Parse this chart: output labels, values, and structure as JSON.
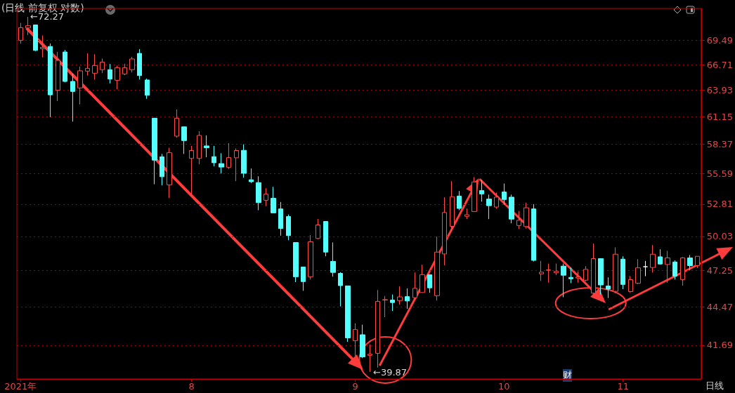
{
  "chart_data": {
    "type": "candlestick",
    "title": "(日线 前复权 对数)",
    "categories": [
      "2021年",
      null,
      null,
      null,
      null,
      null,
      null,
      null,
      null,
      null,
      null,
      null,
      null,
      null,
      null,
      null,
      null,
      null,
      null,
      null,
      null,
      null,
      null,
      "8",
      null,
      null,
      null,
      null,
      null,
      null,
      null,
      null,
      null,
      null,
      null,
      null,
      null,
      null,
      null,
      null,
      null,
      null,
      null,
      null,
      null,
      "9",
      null,
      null,
      null,
      null,
      null,
      null,
      null,
      null,
      null,
      null,
      null,
      null,
      null,
      null,
      null,
      null,
      null,
      null,
      null,
      "10",
      null,
      null,
      null,
      null,
      null,
      null,
      null,
      null,
      null,
      null,
      null,
      null,
      null,
      null,
      null,
      "11",
      null,
      null,
      null,
      null,
      null,
      null,
      null,
      null,
      null,
      null
    ],
    "ohlc": [
      [
        69.49,
        71.54,
        69.09,
        70.97
      ],
      [
        70.94,
        72.27,
        70.1,
        71.2
      ],
      [
        71.3,
        71.3,
        68.24,
        68.32
      ],
      [
        68.51,
        70.06,
        67.53,
        68.67
      ],
      [
        68.78,
        69.12,
        61.1,
        63.42
      ],
      [
        63.91,
        68.14,
        62.76,
        67.19
      ],
      [
        68.14,
        68.38,
        64.76,
        64.86
      ],
      [
        64.86,
        65.71,
        60.64,
        63.78
      ],
      [
        64.16,
        66.48,
        62.41,
        66.02
      ],
      [
        65.99,
        67.98,
        65.5,
        66.3
      ],
      [
        65.76,
        67.88,
        65.07,
        66.61
      ],
      [
        66.15,
        67.4,
        65.76,
        67.0
      ],
      [
        66.15,
        66.79,
        64.65,
        65.12
      ],
      [
        64.99,
        66.61,
        64.03,
        66.38
      ],
      [
        65.68,
        66.81,
        65.53,
        66.38
      ],
      [
        66.15,
        67.59,
        65.84,
        67.35
      ],
      [
        67.98,
        68.46,
        65.07,
        65.5
      ],
      [
        65.02,
        65.17,
        63.0,
        63.37
      ],
      [
        60.99,
        60.99,
        54.6,
        56.85
      ],
      [
        57.16,
        57.44,
        54.49,
        55.29
      ],
      [
        54.54,
        58.04,
        53.35,
        57.56
      ],
      [
        59.18,
        61.88,
        59.02,
        60.99
      ],
      [
        60.11,
        60.11,
        57.44,
        58.74
      ],
      [
        57.01,
        58.22,
        53.52,
        57.77
      ],
      [
        57.01,
        59.67,
        56.45,
        59.25
      ],
      [
        58.22,
        59.25,
        57.12,
        58.04
      ],
      [
        57.18,
        58.22,
        56.27,
        56.6
      ],
      [
        56.52,
        57.51,
        55.61,
        56.19
      ],
      [
        56.17,
        58.5,
        56.01,
        57.09
      ],
      [
        57.07,
        57.97,
        54.88,
        57.77
      ],
      [
        57.79,
        58.37,
        55.2,
        55.61
      ],
      [
        55.01,
        56.06,
        54.7,
        54.83
      ],
      [
        54.75,
        55.33,
        52.27,
        52.94
      ],
      [
        53.15,
        54.23,
        52.63,
        53.7
      ],
      [
        53.33,
        54.36,
        52.04,
        52.04
      ],
      [
        52.39,
        53.0,
        50.09,
        50.69
      ],
      [
        51.72,
        51.9,
        49.71,
        50.1
      ],
      [
        49.52,
        49.52,
        46.34,
        46.76
      ],
      [
        47.53,
        47.53,
        45.67,
        46.38
      ],
      [
        46.76,
        50.14,
        46.54,
        49.58
      ],
      [
        49.86,
        51.5,
        49.8,
        51.0
      ],
      [
        51.3,
        51.3,
        48.39,
        48.73
      ],
      [
        47.98,
        49.52,
        46.76,
        47.1
      ],
      [
        47.03,
        47.12,
        44.49,
        46.07
      ],
      [
        46.05,
        46.05,
        41.93,
        42.21
      ],
      [
        42.01,
        43.25,
        40.94,
        42.8
      ],
      [
        42.43,
        43.15,
        40.8,
        40.89
      ],
      [
        40.99,
        41.75,
        39.87,
        41.07
      ],
      [
        41.13,
        45.73,
        40.16,
        44.87
      ],
      [
        44.97,
        45.28,
        43.7,
        45.0
      ],
      [
        44.97,
        45.39,
        44.15,
        44.78
      ],
      [
        44.93,
        46.01,
        44.63,
        45.21
      ],
      [
        45.23,
        45.86,
        44.31,
        44.9
      ],
      [
        45.15,
        47.09,
        44.98,
        45.86
      ],
      [
        45.54,
        47.71,
        45.54,
        46.92
      ],
      [
        46.92,
        46.92,
        45.52,
        45.9
      ],
      [
        45.3,
        50.01,
        44.93,
        48.73
      ],
      [
        48.58,
        53.42,
        47.66,
        52.07
      ],
      [
        50.88,
        54.88,
        50.45,
        53.47
      ],
      [
        53.53,
        53.98,
        52.27,
        52.43
      ],
      [
        51.74,
        52.43,
        51.5,
        51.88
      ],
      [
        52.16,
        55.25,
        52.16,
        54.81
      ],
      [
        54.03,
        55.0,
        53.03,
        53.72
      ],
      [
        53.26,
        53.66,
        51.5,
        52.67
      ],
      [
        52.55,
        53.84,
        52.4,
        53.43
      ],
      [
        53.9,
        54.66,
        52.77,
        53.22
      ],
      [
        53.43,
        53.66,
        51.14,
        51.5
      ],
      [
        50.95,
        52.2,
        50.65,
        51.4
      ],
      [
        50.86,
        52.94,
        50.69,
        52.49
      ],
      [
        52.39,
        52.81,
        47.97,
        48.06
      ],
      [
        46.99,
        48.02,
        46.43,
        47.12
      ],
      [
        47.27,
        47.8,
        46.3,
        47.3
      ],
      [
        47.07,
        47.8,
        46.88,
        47.18
      ],
      [
        47.6,
        47.8,
        45.18,
        46.88
      ],
      [
        46.71,
        47.49,
        46.26,
        46.6
      ],
      [
        46.66,
        47.18,
        46.3,
        46.74
      ],
      [
        46.49,
        47.6,
        46.4,
        47.34
      ],
      [
        45.49,
        49.44,
        45.39,
        48.2
      ],
      [
        48.2,
        48.2,
        45.39,
        46.12
      ],
      [
        46.04,
        46.71,
        45.12,
        45.8
      ],
      [
        45.63,
        49.12,
        45.49,
        48.56
      ],
      [
        48.16,
        48.39,
        45.8,
        46.16
      ],
      [
        45.61,
        46.82,
        45.54,
        46.53
      ],
      [
        46.25,
        48.16,
        46.19,
        47.46
      ],
      [
        47.55,
        48.02,
        46.8,
        47.55
      ],
      [
        47.49,
        49.31,
        47.09,
        48.56
      ],
      [
        48.35,
        48.96,
        47.71,
        47.77
      ],
      [
        47.73,
        48.83,
        46.3,
        48.26
      ],
      [
        47.93,
        48.06,
        46.54,
        46.8
      ],
      [
        46.54,
        48.32,
        46.07,
        48.26
      ],
      [
        48.26,
        48.49,
        47.29,
        47.64
      ],
      [
        47.64,
        48.39,
        47.45,
        48.39
      ]
    ],
    "colors": [
      "#ff4a4a",
      "#ff4a4a",
      "#54ffff",
      "#ff4a4a",
      "#54ffff",
      "#ff4a4a",
      "#54ffff",
      "#54ffff",
      "#ff4a4a",
      "#ff4a4a",
      "#ff4a4a",
      "#ff4a4a",
      "#54ffff",
      "#ff4a4a",
      "#ff4a4a",
      "#ff4a4a",
      "#54ffff",
      "#54ffff",
      "#54ffff",
      "#54ffff",
      "#ff4a4a",
      "#ff4a4a",
      "#54ffff",
      "#ff4a4a",
      "#ff4a4a",
      "#54ffff",
      "#54ffff",
      "#54ffff",
      "#ff4a4a",
      "#ff4a4a",
      "#54ffff",
      "#54ffff",
      "#54ffff",
      "#ff4a4a",
      "#54ffff",
      "#54ffff",
      "#54ffff",
      "#54ffff",
      "#54ffff",
      "#ff4a4a",
      "#ff4a4a",
      "#54ffff",
      "#54ffff",
      "#54ffff",
      "#54ffff",
      "#ff4a4a",
      "#54ffff",
      "#ff4a4a",
      "#ff4a4a",
      "#ff4a4a",
      "#54ffff",
      "#ff4a4a",
      "#54ffff",
      "#ff4a4a",
      "#ff4a4a",
      "#54ffff",
      "#ff4a4a",
      "#ff4a4a",
      "#ff4a4a",
      "#54ffff",
      "#ff4a4a",
      "#ff4a4a",
      "#54ffff",
      "#54ffff",
      "#ff4a4a",
      "#54ffff",
      "#54ffff",
      "#ff4a4a",
      "#ff4a4a",
      "#54ffff",
      "#ff4a4a",
      "#ff4a4a",
      "#ff4a4a",
      "#54ffff",
      "#54ffff",
      "#ff4a4a",
      "#ff4a4a",
      "#ff4a4a",
      "#54ffff",
      "#54ffff",
      "#ff4a4a",
      "#54ffff",
      "#ff4a4a",
      "#ff4a4a",
      "#ffffff",
      "#ff4a4a",
      "#54ffff",
      "#ff4a4a",
      "#54ffff",
      "#ff4a4a",
      "#54ffff",
      "#ff4a4a"
    ],
    "log": "y",
    "ylim": [
      39.4,
      73.3
    ],
    "yticks": [
      41.69,
      44.47,
      47.25,
      50.03,
      52.81,
      55.59,
      58.37,
      61.15,
      63.93,
      66.71,
      69.49
    ],
    "grid": "y",
    "annotations": [
      "日线",
      "财",
      "←72.27",
      "←39.87"
    ]
  }
}
